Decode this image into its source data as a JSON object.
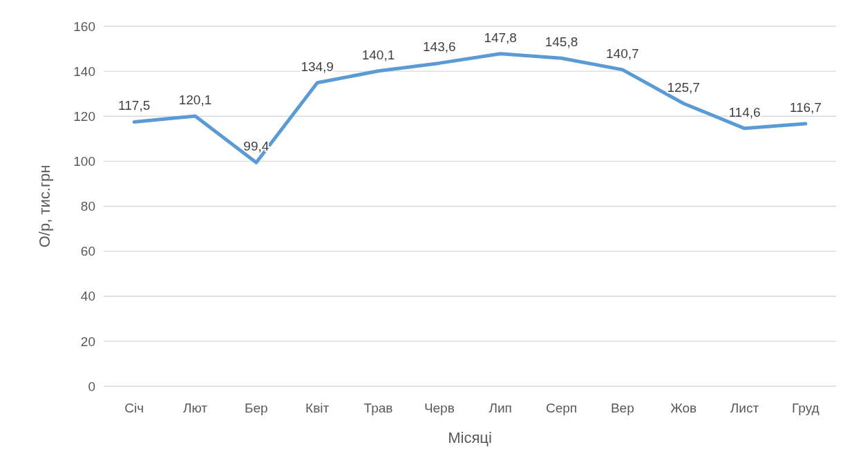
{
  "chart_data": {
    "type": "line",
    "xlabel": "Місяці",
    "ylabel": "О/р, тис.грн",
    "categories": [
      "Січ",
      "Лют",
      "Бер",
      "Квіт",
      "Трав",
      "Черв",
      "Лип",
      "Серп",
      "Вер",
      "Жов",
      "Лист",
      "Груд"
    ],
    "series": [
      {
        "color": "#5b9bd5",
        "values": [
          117.5,
          120.1,
          99.4,
          134.9,
          140.1,
          143.6,
          147.8,
          145.8,
          140.7,
          125.7,
          114.6,
          116.7
        ],
        "value_labels": [
          "117,5",
          "120,1",
          "99,4",
          "134,9",
          "140,1",
          "143,6",
          "147,8",
          "145,8",
          "140,7",
          "125,7",
          "114,6",
          "116,7"
        ]
      }
    ],
    "ylim": [
      0,
      160
    ],
    "yticks": [
      0,
      20,
      40,
      60,
      80,
      100,
      120,
      140,
      160
    ],
    "grid": "y",
    "marker": "none",
    "line_style": "solid"
  }
}
